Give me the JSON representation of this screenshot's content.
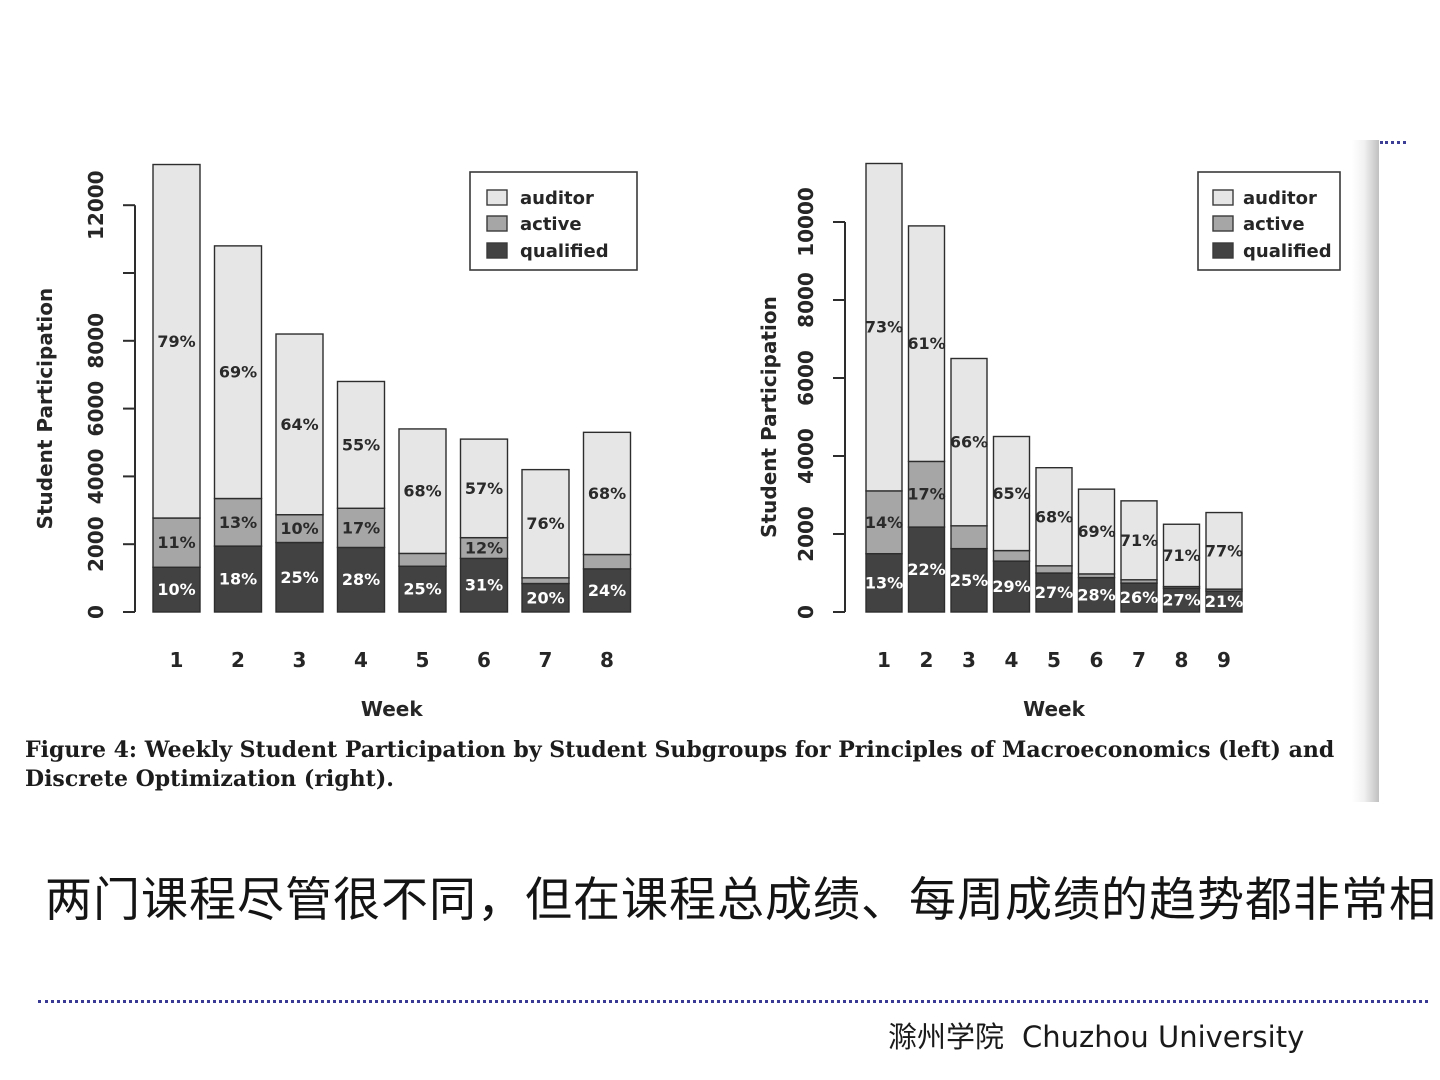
{
  "slide": {
    "comment_text": "两门课程尽管很不同，但在课程总成绩、每周成绩的趋势都非常相",
    "footer": {
      "cn": "滁州学院",
      "en": "Chuzhou University"
    }
  },
  "figure": {
    "caption_line1": "Figure 4: Weekly Student Participation by Student Subgroups for Principles of Macroeconomics (left) and",
    "caption_line2": "Discrete Optimization (right)."
  },
  "chart_data": [
    {
      "id": "left",
      "type": "bar",
      "stacked": true,
      "course": "Principles of Macroeconomics",
      "xlabel": "Week",
      "ylabel": "Student Participation",
      "ylim": [
        0,
        13400
      ],
      "yticks": [
        {
          "value": 0,
          "label": "0"
        },
        {
          "value": 2000,
          "label": "2000"
        },
        {
          "value": 4000,
          "label": "4000"
        },
        {
          "value": 6000,
          "label": "6000"
        },
        {
          "value": 8000,
          "label": "8000"
        },
        {
          "value": 10000,
          "label": ""
        },
        {
          "value": 12000,
          "label": "12000"
        }
      ],
      "legend": [
        "auditor",
        "active",
        "qualified"
      ],
      "colors": {
        "auditor": "#e6e6e6",
        "active": "#a6a6a6",
        "qualified": "#424242",
        "stroke": "#2d2d2d"
      },
      "bars": [
        {
          "week": "1",
          "total": 13200,
          "qualified": {
            "pct": 10,
            "label": "10%"
          },
          "active": {
            "pct": 11,
            "label": "11%"
          },
          "auditor": {
            "pct": 79,
            "label": "79%"
          }
        },
        {
          "week": "2",
          "total": 10800,
          "qualified": {
            "pct": 18,
            "label": "18%"
          },
          "active": {
            "pct": 13,
            "label": "13%"
          },
          "auditor": {
            "pct": 69,
            "label": "69%"
          }
        },
        {
          "week": "3",
          "total": 8200,
          "qualified": {
            "pct": 25,
            "label": "25%"
          },
          "active": {
            "pct": 10,
            "label": "10%"
          },
          "auditor": {
            "pct": 64,
            "label": "64%"
          }
        },
        {
          "week": "4",
          "total": 6800,
          "qualified": {
            "pct": 28,
            "label": "28%"
          },
          "active": {
            "pct": 17,
            "label": "17%"
          },
          "auditor": {
            "pct": 55,
            "label": "55%"
          }
        },
        {
          "week": "5",
          "total": 5400,
          "qualified": {
            "pct": 25,
            "label": "25%"
          },
          "active": {
            "pct": 7,
            "label": null
          },
          "auditor": {
            "pct": 68,
            "label": "68%"
          }
        },
        {
          "week": "6",
          "total": 5100,
          "qualified": {
            "pct": 31,
            "label": "31%"
          },
          "active": {
            "pct": 12,
            "label": "12%"
          },
          "auditor": {
            "pct": 57,
            "label": "57%"
          }
        },
        {
          "week": "7",
          "total": 4200,
          "qualified": {
            "pct": 20,
            "label": "20%"
          },
          "active": {
            "pct": 4,
            "label": null
          },
          "auditor": {
            "pct": 76,
            "label": "76%"
          }
        },
        {
          "week": "8",
          "total": 5300,
          "qualified": {
            "pct": 24,
            "label": "24%"
          },
          "active": {
            "pct": 8,
            "label": null
          },
          "auditor": {
            "pct": 68,
            "label": "68%"
          }
        }
      ]
    },
    {
      "id": "right",
      "type": "bar",
      "stacked": true,
      "course": "Discrete Optimization",
      "xlabel": "Week",
      "ylabel": "Student Participation",
      "ylim": [
        0,
        11700
      ],
      "yticks": [
        {
          "value": 0,
          "label": "0"
        },
        {
          "value": 2000,
          "label": "2000"
        },
        {
          "value": 4000,
          "label": "4000"
        },
        {
          "value": 6000,
          "label": "6000"
        },
        {
          "value": 8000,
          "label": "8000"
        },
        {
          "value": 10000,
          "label": "10000"
        }
      ],
      "legend": [
        "auditor",
        "active",
        "qualified"
      ],
      "colors": {
        "auditor": "#e6e6e6",
        "active": "#a6a6a6",
        "qualified": "#424242",
        "stroke": "#2d2d2d"
      },
      "bars": [
        {
          "week": "1",
          "total": 11500,
          "qualified": {
            "pct": 13,
            "label": "13%"
          },
          "active": {
            "pct": 14,
            "label": "14%"
          },
          "auditor": {
            "pct": 73,
            "label": "73%"
          }
        },
        {
          "week": "2",
          "total": 9900,
          "qualified": {
            "pct": 22,
            "label": "22%"
          },
          "active": {
            "pct": 17,
            "label": "17%"
          },
          "auditor": {
            "pct": 61,
            "label": "61%"
          }
        },
        {
          "week": "3",
          "total": 6500,
          "qualified": {
            "pct": 25,
            "label": "25%"
          },
          "active": {
            "pct": 9,
            "label": null
          },
          "auditor": {
            "pct": 66,
            "label": "66%"
          }
        },
        {
          "week": "4",
          "total": 4500,
          "qualified": {
            "pct": 29,
            "label": "29%"
          },
          "active": {
            "pct": 6,
            "label": null
          },
          "auditor": {
            "pct": 65,
            "label": "65%"
          }
        },
        {
          "week": "5",
          "total": 3700,
          "qualified": {
            "pct": 27,
            "label": "27%"
          },
          "active": {
            "pct": 5,
            "label": null
          },
          "auditor": {
            "pct": 68,
            "label": "68%"
          }
        },
        {
          "week": "6",
          "total": 3150,
          "qualified": {
            "pct": 28,
            "label": "28%"
          },
          "active": {
            "pct": 3,
            "label": null
          },
          "auditor": {
            "pct": 69,
            "label": "69%"
          }
        },
        {
          "week": "7",
          "total": 2850,
          "qualified": {
            "pct": 26,
            "label": "26%"
          },
          "active": {
            "pct": 3,
            "label": null
          },
          "auditor": {
            "pct": 71,
            "label": "71%"
          }
        },
        {
          "week": "8",
          "total": 2250,
          "qualified": {
            "pct": 27,
            "label": "27%"
          },
          "active": {
            "pct": 2,
            "label": null
          },
          "auditor": {
            "pct": 71,
            "label": "71%"
          }
        },
        {
          "week": "9",
          "total": 2550,
          "qualified": {
            "pct": 21,
            "label": "21%"
          },
          "active": {
            "pct": 2,
            "label": null
          },
          "auditor": {
            "pct": 77,
            "label": "77%"
          }
        }
      ]
    }
  ]
}
